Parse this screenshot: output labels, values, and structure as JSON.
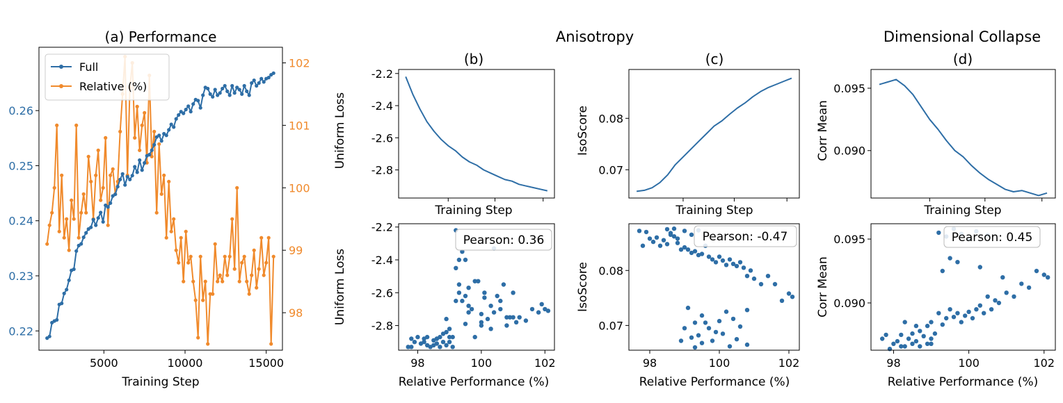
{
  "colors": {
    "blue": "#2e6ea6",
    "orange": "#f08a2c",
    "black": "#000000"
  },
  "header": {
    "anisotropy": "Anisotropy",
    "dimensional_collapse": "Dimensional Collapse"
  },
  "chart_data": [
    {
      "id": "a",
      "type": "line",
      "title": "(a) Performance",
      "xlabel": "Training Step",
      "xlim": [
        1000,
        16000
      ],
      "xticks": [
        5000,
        10000,
        15000
      ],
      "ylim_left": [
        0.2165,
        0.2715
      ],
      "yticks_left": [
        "0.22",
        "0.23",
        "0.24",
        "0.25",
        "0.26"
      ],
      "ylim_right": [
        97.4,
        102.25
      ],
      "yticks_right": [
        "98",
        "99",
        "100",
        "101",
        "102"
      ],
      "legend": [
        "Full",
        "Relative (%)"
      ],
      "legend_loc": "upper left",
      "series": [
        {
          "name": "Full",
          "axis": "left",
          "color": "blue",
          "x": [
            1500,
            1650,
            1800,
            1950,
            2100,
            2250,
            2400,
            2550,
            2700,
            2850,
            3000,
            3150,
            3300,
            3450,
            3600,
            3750,
            3900,
            4050,
            4200,
            4350,
            4500,
            4650,
            4800,
            4950,
            5100,
            5250,
            5400,
            5550,
            5700,
            5850,
            6000,
            6150,
            6300,
            6450,
            6600,
            6750,
            6900,
            7050,
            7200,
            7350,
            7500,
            7650,
            7800,
            7950,
            8100,
            8250,
            8400,
            8550,
            8700,
            8850,
            9000,
            9150,
            9300,
            9450,
            9600,
            9750,
            9900,
            10050,
            10200,
            10350,
            10500,
            10650,
            10800,
            10950,
            11100,
            11250,
            11400,
            11550,
            11700,
            11850,
            12000,
            12150,
            12300,
            12450,
            12600,
            12750,
            12900,
            13050,
            13200,
            13350,
            13500,
            13650,
            13800,
            13950,
            14100,
            14250,
            14400,
            14550,
            14700,
            14850,
            15000,
            15150,
            15300,
            15450
          ],
          "values": [
            0.2187,
            0.219,
            0.2215,
            0.2218,
            0.222,
            0.2248,
            0.225,
            0.2268,
            0.2275,
            0.2292,
            0.231,
            0.2312,
            0.2345,
            0.2355,
            0.2358,
            0.237,
            0.2378,
            0.2385,
            0.2388,
            0.2402,
            0.2392,
            0.2405,
            0.2415,
            0.2398,
            0.2428,
            0.2425,
            0.2432,
            0.2445,
            0.2448,
            0.2462,
            0.2475,
            0.2485,
            0.2465,
            0.248,
            0.2475,
            0.2482,
            0.2498,
            0.2488,
            0.251,
            0.2492,
            0.2505,
            0.2518,
            0.252,
            0.2528,
            0.2538,
            0.2552,
            0.2555,
            0.2545,
            0.2558,
            0.2555,
            0.2565,
            0.2575,
            0.257,
            0.2585,
            0.2592,
            0.2598,
            0.2595,
            0.2602,
            0.2608,
            0.2598,
            0.2612,
            0.262,
            0.2618,
            0.2605,
            0.2628,
            0.2642,
            0.264,
            0.263,
            0.2625,
            0.2638,
            0.2628,
            0.2632,
            0.264,
            0.2645,
            0.2635,
            0.2628,
            0.2645,
            0.2632,
            0.2642,
            0.2638,
            0.263,
            0.2645,
            0.2635,
            0.2628,
            0.265,
            0.2655,
            0.2645,
            0.265,
            0.2658,
            0.2652,
            0.2658,
            0.266,
            0.2665,
            0.2668
          ]
        },
        {
          "name": "Relative (%)",
          "axis": "right",
          "color": "orange",
          "x": [
            1500,
            1650,
            1800,
            1950,
            2100,
            2250,
            2400,
            2550,
            2700,
            2850,
            3000,
            3150,
            3300,
            3450,
            3600,
            3750,
            3900,
            4050,
            4200,
            4350,
            4500,
            4650,
            4800,
            4950,
            5100,
            5250,
            5400,
            5550,
            5700,
            5850,
            6000,
            6150,
            6300,
            6450,
            6600,
            6750,
            6900,
            7050,
            7200,
            7350,
            7500,
            7650,
            7800,
            7950,
            8100,
            8250,
            8400,
            8550,
            8700,
            8850,
            9000,
            9150,
            9300,
            9450,
            9600,
            9750,
            9900,
            10050,
            10200,
            10350,
            10500,
            10650,
            10800,
            10950,
            11100,
            11250,
            11400,
            11550,
            11700,
            11850,
            12000,
            12150,
            12300,
            12450,
            12600,
            12750,
            12900,
            13050,
            13200,
            13350,
            13500,
            13650,
            13800,
            13950,
            14100,
            14250,
            14400,
            14550,
            14700,
            14850,
            15000,
            15150,
            15300,
            15450
          ],
          "values": [
            99.1,
            99.4,
            99.6,
            100,
            101,
            99.3,
            100.2,
            99.2,
            99.5,
            99.0,
            99.8,
            99.5,
            101,
            99.2,
            99.6,
            99.9,
            99.6,
            100.5,
            100.1,
            99.5,
            100.2,
            100.6,
            99.8,
            100,
            100.8,
            99.4,
            100.2,
            100.3,
            99.9,
            100.1,
            100.9,
            101.5,
            102.1,
            100.2,
            101.6,
            102,
            100.8,
            101.3,
            100.6,
            101,
            101.2,
            100.4,
            101.8,
            100.5,
            100.9,
            99.6,
            100.7,
            99.9,
            100.2,
            99.2,
            100.1,
            99.3,
            99.5,
            99.0,
            98.8,
            99.2,
            98.5,
            99.3,
            98.8,
            98.9,
            98.5,
            98.2,
            97.6,
            98.9,
            98.2,
            98.5,
            97.5,
            98.3,
            98.3,
            99.1,
            98.5,
            98.6,
            98.5,
            98.9,
            98.6,
            98.9,
            99.5,
            98.7,
            100,
            98.5,
            98.8,
            98.9,
            98.5,
            98.3,
            98.6,
            99,
            98.4,
            98.7,
            99.2,
            98.6,
            98.8,
            99.2,
            97.5,
            98.9
          ],
          "_x_override_note": null
        }
      ]
    },
    {
      "id": "b_top",
      "type": "line",
      "title": "(b)",
      "xlabel": "Training Step",
      "ylabel": "Uniform Loss",
      "ylim": [
        -2.975,
        -2.175
      ],
      "yticks": [
        "-2.2",
        "-2.4",
        "-2.6",
        "-2.8"
      ],
      "x": [
        0,
        0.05,
        0.1,
        0.15,
        0.2,
        0.25,
        0.3,
        0.35,
        0.4,
        0.45,
        0.5,
        0.55,
        0.6,
        0.65,
        0.7,
        0.75,
        0.8,
        0.85,
        0.9,
        0.95,
        1.0
      ],
      "values": [
        -2.22,
        -2.33,
        -2.42,
        -2.5,
        -2.56,
        -2.61,
        -2.65,
        -2.68,
        -2.72,
        -2.75,
        -2.77,
        -2.8,
        -2.82,
        -2.84,
        -2.86,
        -2.87,
        -2.89,
        -2.9,
        -2.91,
        -2.92,
        -2.93
      ]
    },
    {
      "id": "c_top",
      "type": "line",
      "title": "(c)",
      "xlabel": "Training Step",
      "ylabel": "IsoScore",
      "ylim": [
        0.0645,
        0.0895
      ],
      "yticks": [
        "0.07",
        "0.08"
      ],
      "x": [
        0,
        0.05,
        0.1,
        0.15,
        0.2,
        0.25,
        0.3,
        0.35,
        0.4,
        0.45,
        0.5,
        0.55,
        0.6,
        0.65,
        0.7,
        0.75,
        0.8,
        0.85,
        0.9,
        0.95,
        1.0
      ],
      "values": [
        0.0658,
        0.066,
        0.0665,
        0.0675,
        0.069,
        0.071,
        0.0725,
        0.074,
        0.0755,
        0.077,
        0.0785,
        0.0795,
        0.0808,
        0.082,
        0.083,
        0.0842,
        0.0852,
        0.086,
        0.0866,
        0.0872,
        0.0878
      ]
    },
    {
      "id": "d_top",
      "type": "line",
      "title": "(d)",
      "xlabel": "Training Step",
      "ylabel": "Corr Mean",
      "ylim": [
        0.0862,
        0.0965
      ],
      "yticks": [
        "0.090",
        "0.095"
      ],
      "x": [
        0,
        0.05,
        0.1,
        0.15,
        0.2,
        0.25,
        0.3,
        0.35,
        0.4,
        0.45,
        0.5,
        0.55,
        0.6,
        0.65,
        0.7,
        0.75,
        0.8,
        0.85,
        0.9,
        0.95,
        1.0
      ],
      "values": [
        0.0953,
        0.0955,
        0.0957,
        0.0952,
        0.0945,
        0.0935,
        0.0925,
        0.0917,
        0.0908,
        0.09,
        0.0895,
        0.0888,
        0.0882,
        0.0877,
        0.0873,
        0.0869,
        0.0867,
        0.0868,
        0.0866,
        0.0864,
        0.0866
      ]
    },
    {
      "id": "b_bot",
      "type": "scatter",
      "xlabel": "Relative Performance (%)",
      "ylabel": "Uniform Loss",
      "annotation": "Pearson: 0.36",
      "xlim": [
        97.4,
        102.3
      ],
      "xticks": [
        "98",
        "100",
        "102"
      ],
      "ylim": [
        -2.95,
        -2.18
      ],
      "yticks": [
        "-2.2",
        "-2.4",
        "-2.6",
        "-2.8"
      ],
      "x": [
        97.7,
        97.8,
        97.9,
        98.0,
        98.1,
        98.2,
        98.3,
        98.3,
        98.4,
        98.5,
        98.5,
        98.6,
        98.6,
        98.7,
        98.7,
        98.8,
        98.8,
        98.9,
        98.9,
        99.0,
        99.0,
        99.1,
        99.1,
        99.2,
        99.2,
        99.3,
        99.3,
        99.4,
        99.5,
        99.5,
        99.6,
        99.6,
        99.7,
        99.8,
        99.9,
        100.0,
        100.0,
        100.1,
        100.2,
        100.3,
        100.4,
        100.5,
        100.6,
        100.7,
        100.8,
        100.9,
        101.0,
        101.1,
        101.2,
        101.4,
        101.6,
        101.8,
        101.9,
        102.0,
        102.1,
        99.2,
        99.5,
        100.4,
        99.0,
        99.8,
        100.3,
        100.6,
        99.3,
        98.9,
        99.6,
        100.1,
        100.8,
        101.0,
        98.6,
        99.4,
        100.0,
        97.8,
        98.2
      ],
      "values": [
        -2.93,
        -2.88,
        -2.9,
        -2.87,
        -2.91,
        -2.88,
        -2.92,
        -2.87,
        -2.93,
        -2.89,
        -2.92,
        -2.88,
        -2.91,
        -2.87,
        -2.93,
        -2.85,
        -2.9,
        -2.84,
        -2.92,
        -2.9,
        -2.82,
        -2.93,
        -2.87,
        -2.65,
        -2.45,
        -2.55,
        -2.4,
        -2.65,
        -2.62,
        -2.79,
        -2.57,
        -2.72,
        -2.7,
        -2.53,
        -2.53,
        -2.8,
        -2.73,
        -2.6,
        -2.76,
        -2.68,
        -2.72,
        -2.62,
        -2.7,
        -2.55,
        -2.8,
        -2.75,
        -2.75,
        -2.78,
        -2.75,
        -2.77,
        -2.7,
        -2.72,
        -2.67,
        -2.7,
        -2.71,
        -2.22,
        -2.4,
        -2.33,
        -2.87,
        -2.87,
        -2.82,
        -2.65,
        -2.6,
        -2.76,
        -2.68,
        -2.63,
        -2.75,
        -2.6,
        -2.88,
        -2.35,
        -2.78,
        -2.93,
        -2.9
      ]
    },
    {
      "id": "c_bot",
      "type": "scatter",
      "xlabel": "Relative Performance (%)",
      "ylabel": "IsoScore",
      "annotation": "Pearson: -0.47",
      "xlim": [
        97.4,
        102.3
      ],
      "xticks": [
        "98",
        "100",
        "102"
      ],
      "ylim": [
        0.0655,
        0.0885
      ],
      "yticks": [
        "0.07",
        "0.08"
      ],
      "x": [
        97.7,
        97.8,
        97.9,
        98.0,
        98.1,
        98.2,
        98.3,
        98.4,
        98.5,
        98.6,
        98.7,
        98.8,
        98.9,
        99.0,
        99.1,
        99.2,
        99.3,
        99.4,
        99.5,
        99.6,
        99.7,
        99.8,
        99.9,
        100.0,
        100.1,
        100.2,
        100.3,
        100.4,
        100.5,
        100.6,
        100.7,
        100.8,
        100.9,
        101.0,
        101.2,
        101.4,
        101.6,
        101.8,
        102.0,
        102.1,
        98.5,
        98.6,
        98.7,
        98.8,
        99.0,
        99.2,
        99.4,
        99.1,
        99.3,
        99.5,
        99.7,
        99.9,
        100.2,
        100.4,
        100.6,
        100.8,
        99.2,
        99.5,
        99.8,
        100.1,
        100.3,
        99.0,
        99.4,
        99.6,
        100.0,
        100.5,
        100.8,
        98.9,
        99.3
      ],
      "values": [
        0.0872,
        0.0845,
        0.087,
        0.0858,
        0.0852,
        0.086,
        0.0845,
        0.0855,
        0.0848,
        0.0865,
        0.0862,
        0.085,
        0.0838,
        0.0842,
        0.0838,
        0.0832,
        0.0835,
        0.0828,
        0.083,
        0.0845,
        0.0825,
        0.082,
        0.0815,
        0.0825,
        0.0818,
        0.081,
        0.082,
        0.0812,
        0.0808,
        0.0815,
        0.0805,
        0.079,
        0.08,
        0.0785,
        0.0775,
        0.079,
        0.0775,
        0.0745,
        0.0758,
        0.0752,
        0.0875,
        0.0868,
        0.0876,
        0.0858,
        0.0872,
        0.0865,
        0.0873,
        0.0732,
        0.0705,
        0.0718,
        0.0695,
        0.0688,
        0.0725,
        0.0712,
        0.0698,
        0.0728,
        0.0678,
        0.0668,
        0.0672,
        0.0685,
        0.0662,
        0.0695,
        0.0682,
        0.0705,
        0.0708,
        0.0675,
        0.0665,
        0.0672,
        0.066
      ],
      "_pad": null
    },
    {
      "id": "d_bot",
      "type": "scatter",
      "xlabel": "Relative Performance (%)",
      "ylabel": "Corr Mean",
      "annotation": "Pearson: 0.45",
      "xlim": [
        97.4,
        102.3
      ],
      "xticks": [
        "98",
        "100",
        "102"
      ],
      "ylim": [
        0.0863,
        0.0962
      ],
      "yticks": [
        "0.090",
        "0.095"
      ],
      "x": [
        97.7,
        97.8,
        98.0,
        98.1,
        98.2,
        98.3,
        98.4,
        98.5,
        98.5,
        98.6,
        98.7,
        98.7,
        98.8,
        98.9,
        98.9,
        99.0,
        99.0,
        99.1,
        99.2,
        99.3,
        99.4,
        99.5,
        99.6,
        99.7,
        99.8,
        99.9,
        100.0,
        100.1,
        100.2,
        100.3,
        100.4,
        100.5,
        100.6,
        100.7,
        100.8,
        100.9,
        101.0,
        101.2,
        101.4,
        101.6,
        101.8,
        102.0,
        102.1,
        99.2,
        99.4,
        99.6,
        99.8,
        100.0,
        100.2,
        100.5,
        99.5,
        100.3,
        99.3,
        99.7,
        98.3,
        98.6,
        99.0,
        97.9,
        98.2
      ],
      "values": [
        0.0872,
        0.0875,
        0.0868,
        0.087,
        0.0875,
        0.0866,
        0.0872,
        0.0868,
        0.0876,
        0.087,
        0.0878,
        0.0866,
        0.0874,
        0.0882,
        0.0868,
        0.0872,
        0.0885,
        0.0876,
        0.0892,
        0.0883,
        0.0888,
        0.0895,
        0.0889,
        0.0892,
        0.0885,
        0.089,
        0.0893,
        0.0888,
        0.0895,
        0.0898,
        0.0892,
        0.0905,
        0.0895,
        0.0902,
        0.09,
        0.092,
        0.0908,
        0.0905,
        0.0915,
        0.0912,
        0.0925,
        0.0922,
        0.092,
        0.0955,
        0.0952,
        0.0958,
        0.0954,
        0.095,
        0.0956,
        0.0953,
        0.0935,
        0.0928,
        0.0925,
        0.0932,
        0.0885,
        0.0882,
        0.0868,
        0.0864,
        0.0866
      ]
    }
  ]
}
